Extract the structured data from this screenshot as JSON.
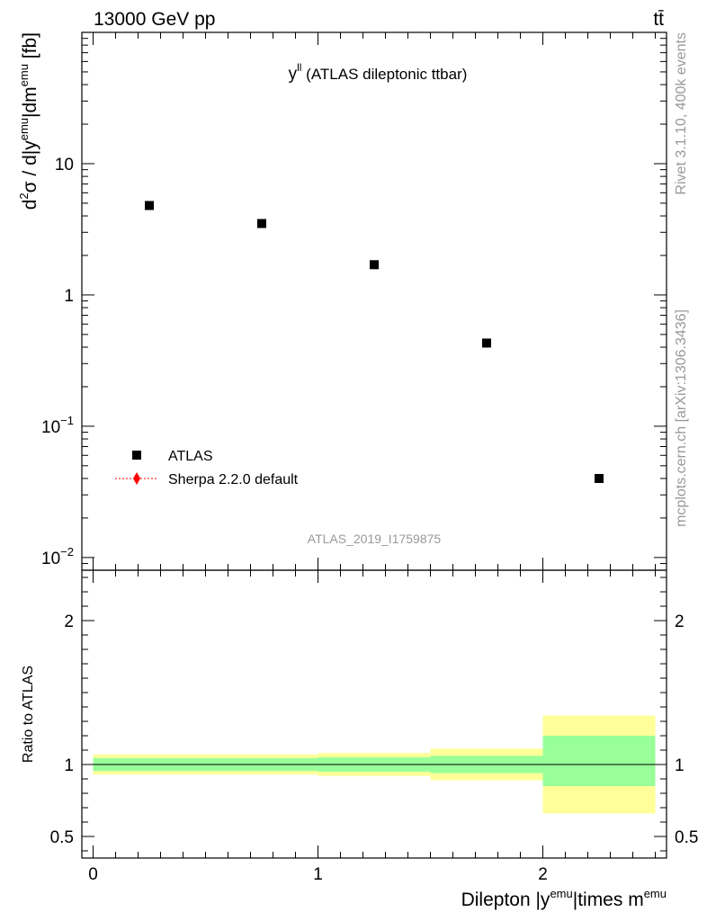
{
  "header": {
    "left": "13000 GeV pp",
    "right": "tt̄"
  },
  "side_labels": {
    "rivet": "Rivet 3.1.10,  400k events",
    "mcplots": "mcplots.cern.ch [arXiv:1306.3436]"
  },
  "colors": {
    "band_inner": "#99ff99",
    "band_outer": "#ffff99",
    "data_marker": "#000000",
    "mc_line": "#ff0000",
    "watermark": "#999999"
  },
  "chart_data": [
    {
      "type": "scatter",
      "title": "y",
      "title_sup": "ll",
      "title_suffix": " (ATLAS dileptonic ttbar)",
      "ylabel": "d²σ / d|y^emu|dm^emu [fb]",
      "ylabel_parts": {
        "d_sup": "2",
        "main": "σ / d|y",
        "sup1": "emu",
        "mid": "|dm",
        "sup2": "emu",
        "end": " [fb]"
      },
      "yscale": "log",
      "ylim": [
        0.008,
        100
      ],
      "xlim": [
        -0.05,
        2.55
      ],
      "y_tick_labels": [
        {
          "value": 10,
          "base": "10",
          "exp": ""
        },
        {
          "value": 1,
          "base": "1",
          "exp": ""
        },
        {
          "value": 0.1,
          "base": "10",
          "exp": "−1"
        },
        {
          "value": 0.01,
          "base": "10",
          "exp": "−2"
        }
      ],
      "legend": [
        {
          "label": "ATLAS",
          "marker": "square"
        },
        {
          "label": "Sherpa 2.2.0 default",
          "marker": "diamond"
        }
      ],
      "legend_position": "bottom-left",
      "watermark": "ATLAS_2019_I1759875",
      "series": [
        {
          "name": "ATLAS",
          "x": [
            0.25,
            0.75,
            1.25,
            1.75,
            2.25
          ],
          "y": [
            4.8,
            3.5,
            1.7,
            0.43,
            0.04
          ]
        }
      ]
    },
    {
      "type": "line",
      "ylabel": "Ratio to ATLAS",
      "ylim": [
        0.35,
        2.35
      ],
      "xlim": [
        -0.05,
        2.55
      ],
      "y_ticks": [
        0.5,
        1,
        2
      ],
      "y_tick_labels": [
        "0.5",
        "1",
        "2"
      ],
      "x_ticks": [
        0,
        1,
        2
      ],
      "x_tick_labels": [
        "0",
        "1",
        "2"
      ],
      "xlabel_parts": {
        "pre": "Dilepton |y",
        "sup1": "emu",
        "mid": "|times m",
        "sup2": "emu"
      },
      "reference_line": 1,
      "bins": [
        {
          "xlo": 0.0,
          "xhi": 1.0,
          "inner_lo": 0.955,
          "inner_hi": 1.045,
          "outer_lo": 0.93,
          "outer_hi": 1.07
        },
        {
          "xlo": 1.0,
          "xhi": 1.5,
          "inner_lo": 0.95,
          "inner_hi": 1.05,
          "outer_lo": 0.92,
          "outer_hi": 1.08
        },
        {
          "xlo": 1.5,
          "xhi": 2.0,
          "inner_lo": 0.94,
          "inner_hi": 1.06,
          "outer_lo": 0.89,
          "outer_hi": 1.11
        },
        {
          "xlo": 2.0,
          "xhi": 2.5,
          "inner_lo": 0.85,
          "inner_hi": 1.2,
          "outer_lo": 0.66,
          "outer_hi": 1.34
        }
      ]
    }
  ]
}
